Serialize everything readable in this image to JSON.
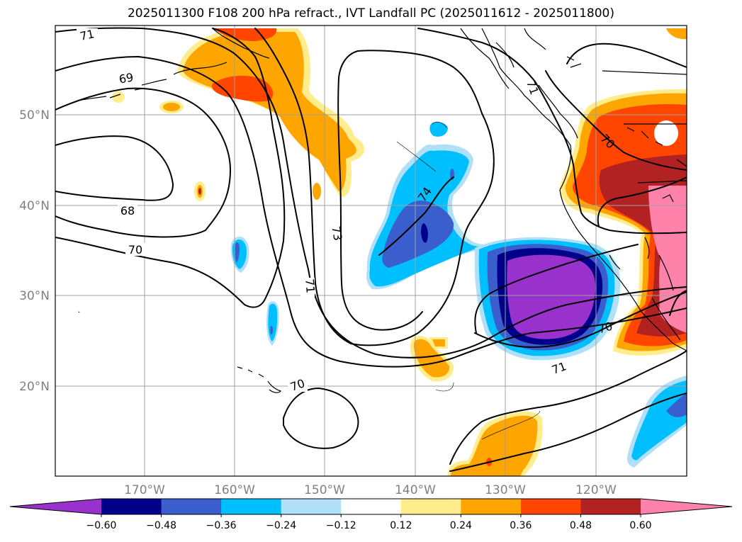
{
  "title": "2025011300 F108 200 hPa refract., IVT Landfall PC (2025011612 - 2025011800)",
  "axes": {
    "x_ticks": [
      "170°W",
      "160°W",
      "150°W",
      "140°W",
      "130°W",
      "120°W"
    ],
    "y_ticks": [
      "20°N",
      "30°N",
      "40°N",
      "50°N"
    ]
  },
  "contour_labels": [
    "71",
    "69",
    "68",
    "70",
    "73",
    "71",
    "74",
    "71",
    "70",
    "70",
    "71",
    "70"
  ],
  "colorbar": {
    "ticks": [
      "−0.60",
      "−0.48",
      "−0.36",
      "−0.24",
      "−0.12",
      "0.12",
      "0.24",
      "0.36",
      "0.48",
      "0.60"
    ],
    "colors": [
      "#9932cc",
      "#00008b",
      "#3a5fcd",
      "#00bfff",
      "#b0e0f8",
      "#ffffff",
      "#ffec8b",
      "#ffa500",
      "#ff4500",
      "#b22222",
      "#ff82ab"
    ]
  }
}
